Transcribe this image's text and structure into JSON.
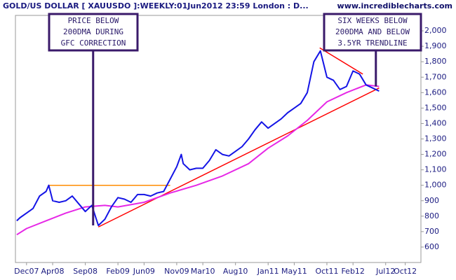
{
  "chart_data": {
    "type": "line",
    "title": "GOLD/US DOLLAR [ XAUUSDO ]:WEEKLY:01Jun2012 23:59 London : D...",
    "subtitle": "www.incrediblecharts.com",
    "xlim": [
      -1.7,
      60.4
    ],
    "ylim": [
      500,
      2100
    ],
    "xticks": [
      {
        "value": 0,
        "label": "Dec07"
      },
      {
        "value": 4,
        "label": "Apr08"
      },
      {
        "value": 9,
        "label": "Sep08"
      },
      {
        "value": 14,
        "label": "Feb09"
      },
      {
        "value": 18,
        "label": "Jun09"
      },
      {
        "value": 23,
        "label": "Nov09"
      },
      {
        "value": 27,
        "label": "Mar10"
      },
      {
        "value": 32,
        "label": "Aug10"
      },
      {
        "value": 37,
        "label": "Jan11"
      },
      {
        "value": 41,
        "label": "May11"
      },
      {
        "value": 46,
        "label": "Oct11"
      },
      {
        "value": 50,
        "label": "Feb12"
      },
      {
        "value": 55,
        "label": "Jul12"
      },
      {
        "value": 58,
        "label": "Oct12"
      }
    ],
    "yticks": [
      600,
      700,
      800,
      900,
      {
        "value": 1000,
        "label": "1,000"
      },
      {
        "value": 1100,
        "label": "1,100"
      },
      {
        "value": 1200,
        "label": "1,200"
      },
      {
        "value": 1300,
        "label": "1,300"
      },
      {
        "value": 1400,
        "label": "1,400"
      },
      {
        "value": 1500,
        "label": "1,500"
      },
      {
        "value": 1600,
        "label": "1,600"
      },
      {
        "value": 1700,
        "label": "1,700"
      },
      {
        "value": 1800,
        "label": "1,800"
      },
      {
        "value": 1900,
        "label": "1,900"
      },
      {
        "value": 2000,
        "label": "2,000"
      }
    ],
    "series": [
      {
        "color": "#1414e6",
        "x": [
          -1.5,
          -1,
          0,
          1,
          2,
          3,
          3.4,
          4,
          5,
          6,
          7,
          8,
          9,
          10,
          11,
          12,
          13,
          14,
          15,
          16,
          17,
          18,
          19,
          20,
          21,
          22,
          23,
          23.7,
          24,
          25,
          26,
          27,
          28,
          29,
          30,
          31,
          32,
          33,
          34,
          35,
          36,
          37,
          38,
          39,
          40,
          41,
          42,
          43,
          44,
          45,
          46,
          47,
          48,
          49,
          50,
          51,
          52,
          53,
          54
        ],
        "values": [
          770,
          790,
          820,
          850,
          930,
          960,
          1000,
          900,
          890,
          900,
          930,
          880,
          830,
          870,
          740,
          780,
          860,
          920,
          910,
          890,
          940,
          940,
          930,
          950,
          960,
          1040,
          1120,
          1200,
          1140,
          1100,
          1110,
          1110,
          1160,
          1230,
          1200,
          1190,
          1220,
          1250,
          1300,
          1360,
          1410,
          1370,
          1400,
          1430,
          1470,
          1500,
          1530,
          1600,
          1800,
          1870,
          1700,
          1680,
          1620,
          1640,
          1740,
          1720,
          1650,
          1630,
          1610
        ]
      },
      {
        "color": "#e628e6",
        "x": [
          -1.5,
          0,
          3,
          6,
          9,
          12,
          14,
          18,
          22,
          26,
          30,
          34,
          37,
          40,
          43,
          46,
          49,
          52,
          54
        ],
        "values": [
          680,
          720,
          770,
          820,
          860,
          870,
          860,
          890,
          950,
          1000,
          1060,
          1140,
          1240,
          1320,
          1420,
          1540,
          1600,
          1650,
          1640
        ]
      }
    ],
    "trendlines": [
      {
        "color": "#ff8c00",
        "x": [
          3.4,
          22
        ],
        "y": [
          1000,
          1000
        ]
      },
      {
        "color": "#ff0000",
        "x": [
          11,
          54
        ],
        "y": [
          730,
          1630
        ]
      },
      {
        "color": "#ff0000",
        "x": [
          44.9,
          51.5
        ],
        "y": [
          1890,
          1720
        ]
      }
    ],
    "annotations": [
      {
        "lines": [
          "PRICE BELOW",
          "200DMA DURING",
          "GFC CORRECTION"
        ],
        "x": 10.2,
        "y": 740
      },
      {
        "lines": [
          "SIX WEEKS BELOW",
          "200DMA AND BELOW",
          "3.5YR TRENDLINE"
        ],
        "x": 53.5,
        "y": 1640
      }
    ]
  }
}
